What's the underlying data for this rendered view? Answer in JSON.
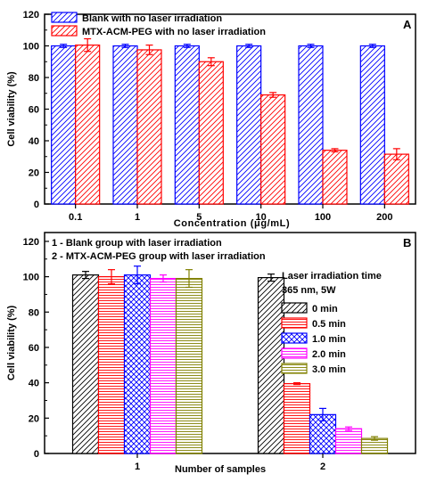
{
  "chart_data": [
    {
      "panel": "A",
      "type": "bar",
      "xlabel": "Concentration (μg/mL)",
      "ylabel": "Cell viability (%)",
      "ylim": [
        0,
        120
      ],
      "yticks": [
        0,
        20,
        40,
        60,
        80,
        100,
        120
      ],
      "categories": [
        "0.1",
        "1",
        "5",
        "10",
        "100",
        "200"
      ],
      "grid": false,
      "legend_position": "top-left",
      "series": [
        {
          "name": "Blank with no laser irradiation",
          "color": "#0000ff",
          "pattern": "diagonal-hatch",
          "values": [
            100,
            100,
            100,
            100,
            100,
            100
          ],
          "errors": [
            1,
            1,
            1,
            1,
            1,
            1
          ]
        },
        {
          "name": "MTX-ACM-PEG with no laser irradiation",
          "color": "#ff0000",
          "pattern": "diagonal-hatch",
          "values": [
            100.5,
            97.5,
            90,
            69,
            34,
            31.5
          ],
          "errors": [
            4,
            3,
            2.5,
            1.5,
            1,
            3.5
          ]
        }
      ]
    },
    {
      "panel": "B",
      "type": "bar",
      "xlabel": "Number of samples",
      "ylabel": "Cell viability (%)",
      "ylim": [
        0,
        125
      ],
      "yticks": [
        0,
        20,
        40,
        60,
        80,
        100,
        120
      ],
      "categories": [
        "1",
        "2"
      ],
      "grid": false,
      "notes": [
        "1 - Blank group with laser irradiation",
        "2 - MTX-ACM-PEG group with laser irradiation"
      ],
      "legend_title": [
        "Laser irradiation time",
        "365 nm, 5W"
      ],
      "legend_position": "right",
      "series": [
        {
          "name": "0 min",
          "color": "#000000",
          "pattern": "diagonal-hatch",
          "values": [
            101,
            99.5
          ],
          "errors": [
            2,
            2
          ]
        },
        {
          "name": "0.5 min",
          "color": "#ff0000",
          "pattern": "horizontal-lines",
          "values": [
            100,
            39.5
          ],
          "errors": [
            4,
            0.5
          ]
        },
        {
          "name": "1.0 min",
          "color": "#0000ff",
          "pattern": "crosshatch",
          "values": [
            101,
            22
          ],
          "errors": [
            5,
            3.5
          ]
        },
        {
          "name": "2.0 min",
          "color": "#ff00ff",
          "pattern": "horizontal-lines",
          "values": [
            99,
            14
          ],
          "errors": [
            2,
            1
          ]
        },
        {
          "name": "3.0 min",
          "color": "#808000",
          "pattern": "horizontal-lines",
          "values": [
            99,
            8.5
          ],
          "errors": [
            5,
            1
          ]
        }
      ]
    }
  ]
}
